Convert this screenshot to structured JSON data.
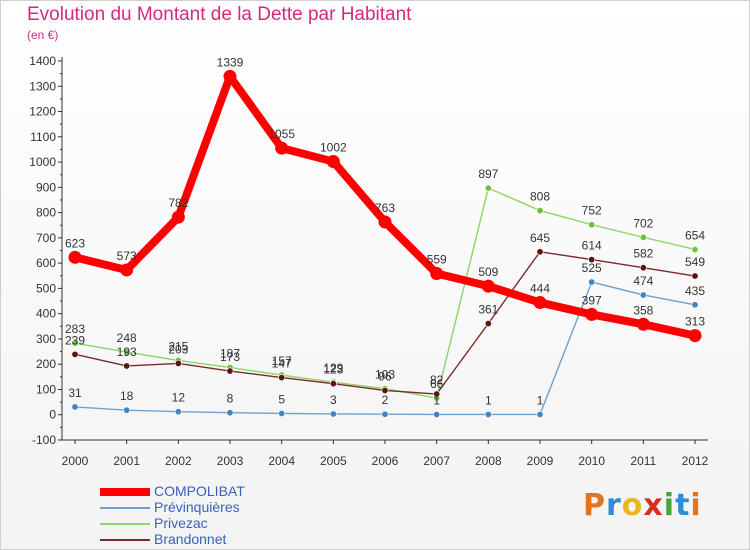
{
  "title": "Evolution du Montant de la Dette par Habitant",
  "subtitle": "(en €)",
  "logo": {
    "text": "Proxiti",
    "colors": [
      "#e5731b",
      "#2c8ed6",
      "#e9b81c",
      "#d82f1c",
      "#43a73c",
      "#2c8ed6",
      "#e5731b"
    ]
  },
  "chart_data": {
    "type": "line",
    "x": [
      "2000",
      "2001",
      "2002",
      "2003",
      "2004",
      "2005",
      "2006",
      "2007",
      "2008",
      "2009",
      "2010",
      "2011",
      "2012"
    ],
    "ylim": [
      -100,
      1400
    ],
    "yticks": [
      -100,
      0,
      100,
      200,
      300,
      400,
      500,
      600,
      700,
      800,
      900,
      1000,
      1100,
      1200,
      1300,
      1400
    ],
    "grid": false,
    "legend_position": "bottom-left",
    "series": [
      {
        "name": "Prévinquières",
        "color": "#6fa0cb",
        "marker": "#3f86c6",
        "values": [
          31,
          18,
          12,
          8,
          5,
          3,
          2,
          1,
          1,
          1,
          525,
          474,
          435
        ],
        "labels": [
          "31",
          "18",
          "12",
          "8",
          "5",
          "3",
          "2",
          "1",
          "1",
          "1",
          "525",
          "474",
          "435"
        ]
      },
      {
        "name": "Privezac",
        "color": "#8fd46a",
        "marker": "#6cc23c",
        "values": [
          283,
          248,
          215,
          187,
          157,
          129,
          103,
          66,
          897,
          808,
          752,
          702,
          654
        ],
        "labels": [
          "283",
          "248",
          "215",
          "187",
          "157",
          "129",
          "103",
          "66",
          "897",
          "808",
          "752",
          "702",
          "654"
        ]
      },
      {
        "name": "Brandonnet",
        "color": "#7a2a2a",
        "marker": "#5e1414",
        "values": [
          239,
          193,
          203,
          173,
          147,
          123,
          96,
          82,
          361,
          645,
          614,
          582,
          549
        ],
        "labels": [
          "239",
          "193",
          "203",
          "173",
          "147",
          "123",
          "96",
          "82",
          "361",
          "645",
          "614",
          "582",
          "549"
        ]
      },
      {
        "name": "COMPOLIBAT",
        "color": "#ff0000",
        "marker": "#ff0000",
        "values": [
          623,
          573,
          782,
          1339,
          1055,
          1002,
          763,
          559,
          509,
          444,
          397,
          358,
          313
        ],
        "labels": [
          "623",
          "573",
          "782",
          "1339",
          "1055",
          "1002",
          "763",
          "559",
          "509",
          "444",
          "397",
          "358",
          "313"
        ]
      }
    ],
    "legend": [
      "COMPOLIBAT",
      "Prévinquières",
      "Privezac",
      "Brandonnet"
    ]
  }
}
